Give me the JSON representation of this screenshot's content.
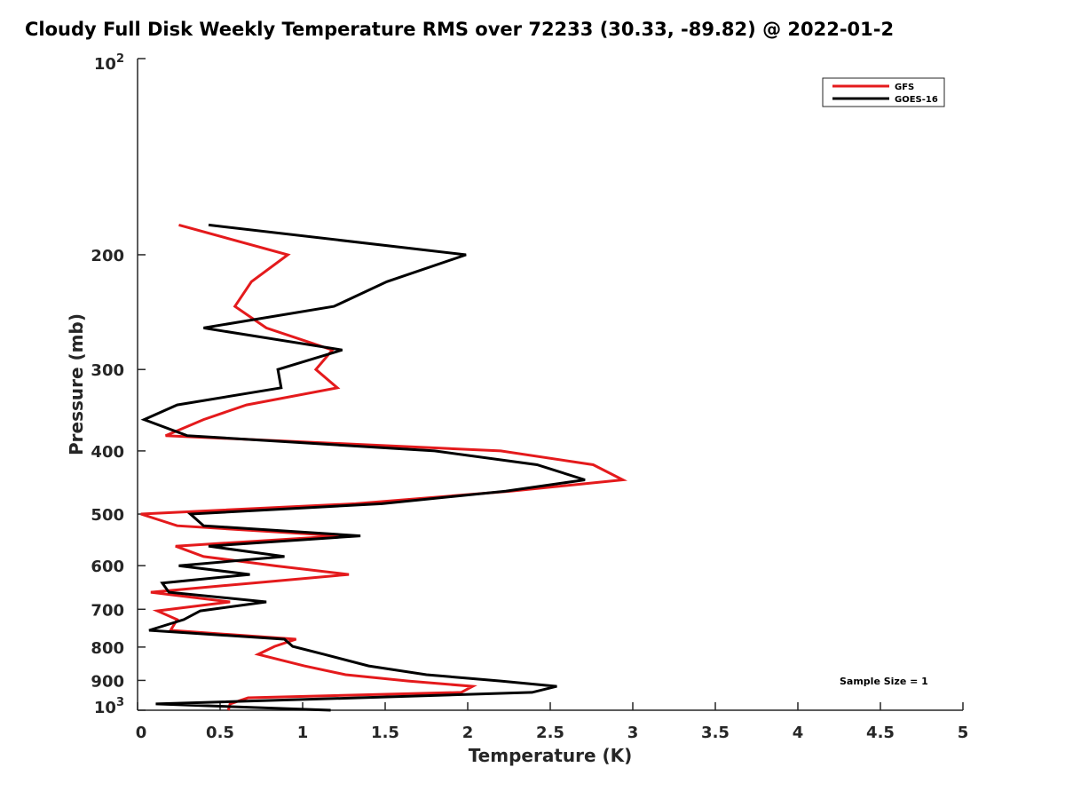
{
  "chart_data": {
    "type": "line",
    "title": "Cloudy Full Disk Weekly Temperature RMS over 72233 (30.33, -89.82) @ 2022-01-2",
    "xlabel": "Temperature (K)",
    "ylabel": "Pressure (mb)",
    "xlim": [
      0,
      5
    ],
    "ylim": [
      100,
      1000
    ],
    "yscale": "log",
    "yreversed": true,
    "grid": false,
    "x_ticks": [
      "0",
      "0.5",
      "1",
      "1.5",
      "2",
      "2.5",
      "3",
      "3.5",
      "4",
      "4.5",
      "5"
    ],
    "x_tick_values": [
      0,
      0.5,
      1,
      1.5,
      2,
      2.5,
      3,
      3.5,
      4,
      4.5,
      5
    ],
    "y_ticks": [
      {
        "value": 100,
        "label": "10",
        "sup": "2"
      },
      {
        "value": 200,
        "label": "200"
      },
      {
        "value": 300,
        "label": "300"
      },
      {
        "value": 400,
        "label": "400"
      },
      {
        "value": 500,
        "label": "500"
      },
      {
        "value": 600,
        "label": "600"
      },
      {
        "value": 700,
        "label": "700"
      },
      {
        "value": 800,
        "label": "800"
      },
      {
        "value": 900,
        "label": "900"
      },
      {
        "value": 1000,
        "label": "10",
        "sup": "3"
      }
    ],
    "legend_placement": "top-right",
    "annotation": "Sample Size = 1",
    "pressure": [
      180,
      200,
      220,
      240,
      259,
      280,
      300,
      320,
      340,
      358,
      379,
      400,
      420,
      443,
      461,
      482,
      500,
      521,
      540,
      560,
      581,
      600,
      619,
      638,
      659,
      682,
      704,
      726,
      754,
      778,
      798,
      821,
      855,
      882,
      902,
      919,
      939,
      957,
      978,
      1000
    ],
    "series": [
      {
        "name": "GFS",
        "color": "#e41a1c",
        "values": [
          0.25,
          0.91,
          0.69,
          0.59,
          0.78,
          1.18,
          1.08,
          1.21,
          0.66,
          0.4,
          0.17,
          2.2,
          2.76,
          2.94,
          2.26,
          1.32,
          0.02,
          0.24,
          1.23,
          0.23,
          0.4,
          0.83,
          1.28,
          0.7,
          0.08,
          0.56,
          0.12,
          0.24,
          0.2,
          0.96,
          0.83,
          0.73,
          1.01,
          1.26,
          1.64,
          2.03,
          1.96,
          0.67,
          0.56,
          0.55
        ]
      },
      {
        "name": "GOES-16",
        "color": "#000000",
        "values": [
          0.43,
          1.99,
          1.51,
          1.19,
          0.4,
          1.24,
          0.85,
          0.87,
          0.24,
          0.04,
          0.3,
          1.8,
          2.42,
          2.71,
          2.23,
          1.48,
          0.32,
          0.4,
          1.35,
          0.43,
          0.89,
          0.25,
          0.68,
          0.15,
          0.19,
          0.78,
          0.38,
          0.28,
          0.07,
          0.89,
          0.94,
          1.13,
          1.4,
          1.75,
          2.2,
          2.54,
          2.39,
          1.34,
          0.11,
          1.17
        ]
      }
    ]
  }
}
